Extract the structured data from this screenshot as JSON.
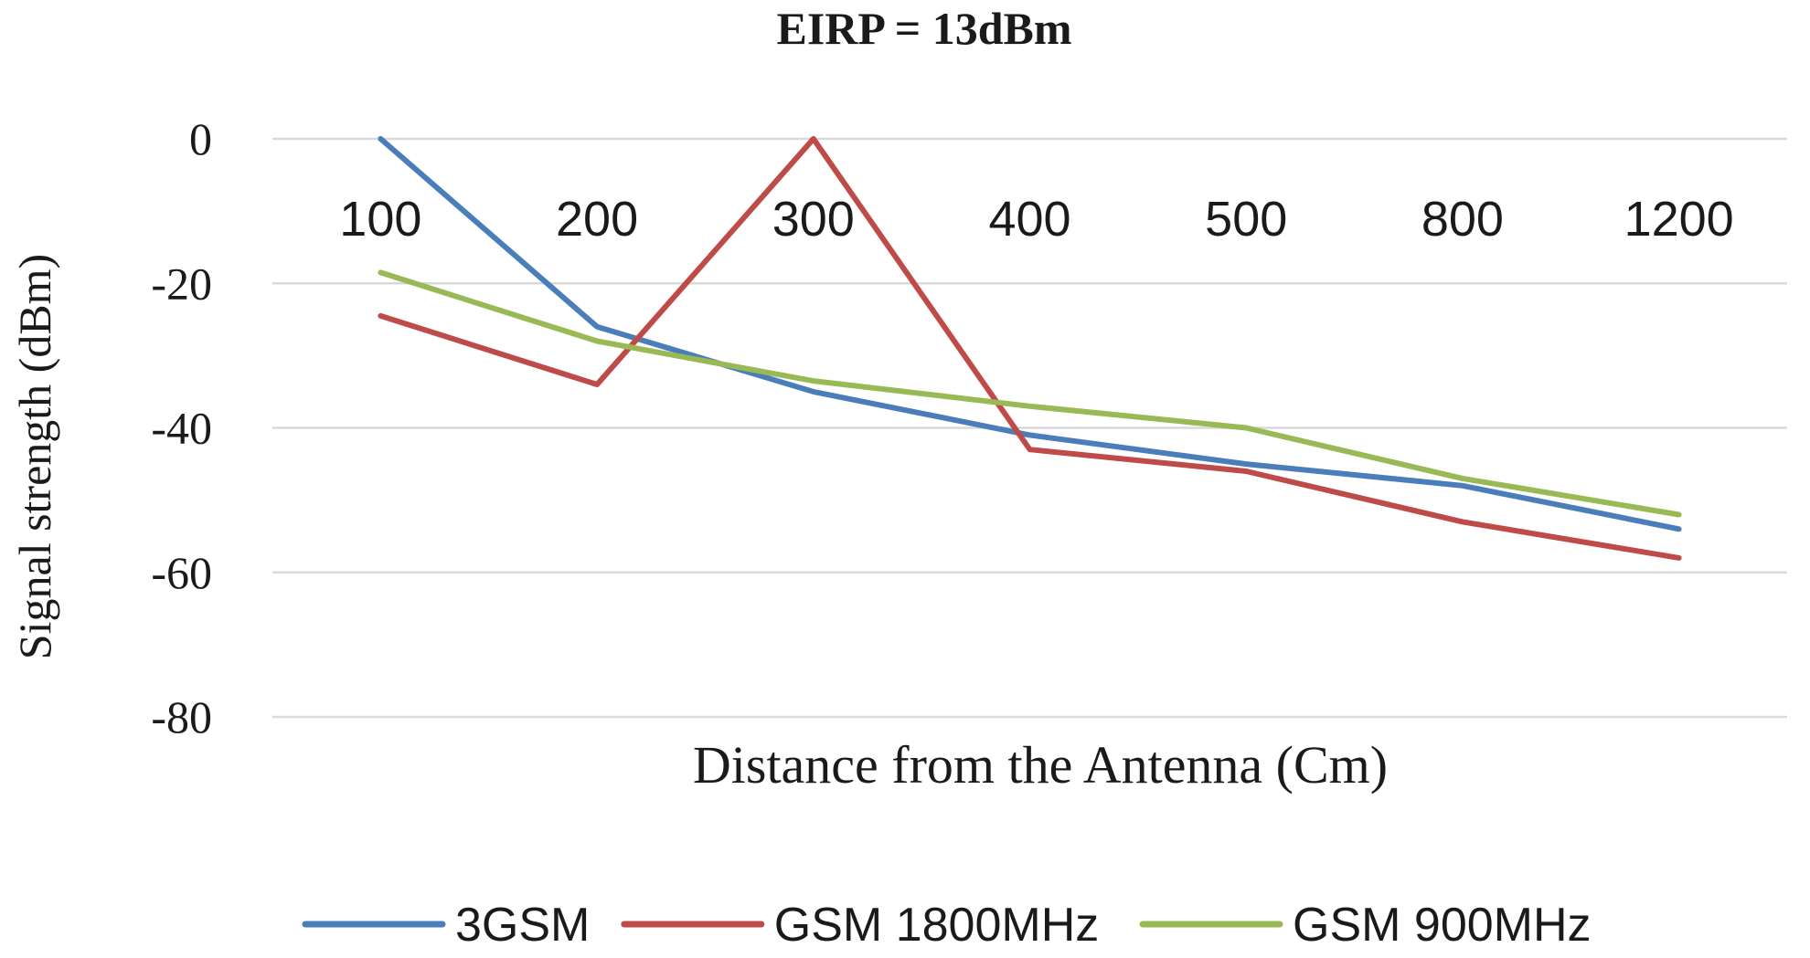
{
  "chart_data": {
    "type": "line",
    "title": "EIRP = 13dBm",
    "xlabel": "Distance from the Antenna (Cm)",
    "ylabel": "Signal strength (dBm)",
    "categories": [
      "100",
      "200",
      "300",
      "400",
      "500",
      "800",
      "1200"
    ],
    "ylim": [
      -80,
      0
    ],
    "yticks": [
      0,
      -20,
      -40,
      -60,
      -80
    ],
    "ytick_labels": [
      "0",
      "-20",
      "-40",
      "-60",
      "-80"
    ],
    "grid": true,
    "legend_position": "bottom",
    "series": [
      {
        "name": "3GSM",
        "color": "#4a7ebb",
        "values": [
          0,
          -26,
          -35,
          -41,
          -45,
          -48,
          -54
        ]
      },
      {
        "name": "GSM 1800MHz",
        "color": "#be4b48",
        "values": [
          -24.5,
          -34,
          0,
          -43,
          -46,
          -53,
          -58
        ]
      },
      {
        "name": "GSM 900MHz",
        "color": "#98b954",
        "values": [
          -18.5,
          -28,
          -33.5,
          -37,
          -40,
          -47,
          -52
        ]
      }
    ]
  }
}
